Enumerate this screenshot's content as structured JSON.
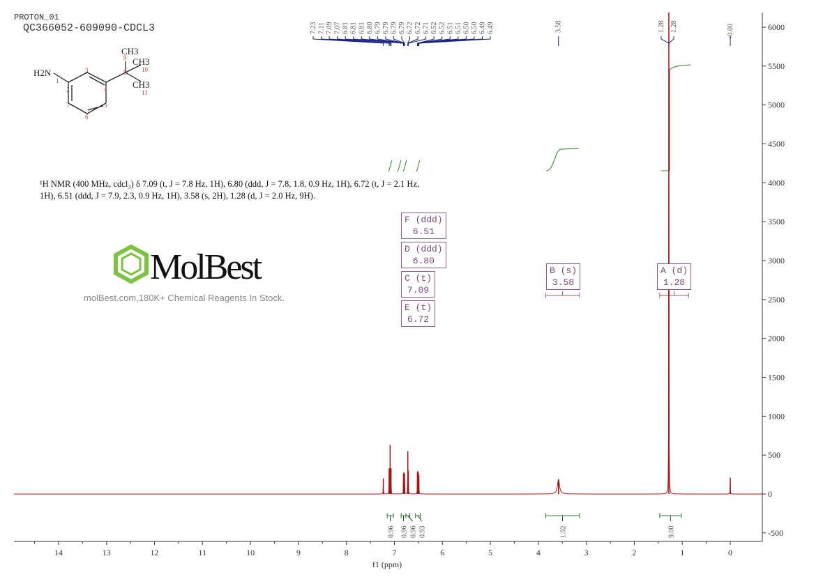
{
  "header": {
    "experiment": "PROTON_01",
    "sample": "QC366052-609090-CDCL3"
  },
  "structure": {
    "labels": {
      "nh2": "H2N",
      "ch3_top": "CH3",
      "ch3_mid": "CH3",
      "ch3_bot": "CH3"
    },
    "atom_numbers": [
      "1",
      "2",
      "3",
      "4",
      "5",
      "6",
      "7",
      "8",
      "9",
      "10",
      "11"
    ]
  },
  "description": "¹H NMR (400 MHz, cdcl₃) δ 7.09 (t, J = 7.8 Hz, 1H), 6.80 (ddd, J = 7.8, 1.8, 0.9 Hz, 1H), 6.72 (t, J = 2.1 Hz, 1H), 6.51 (ddd, J = 7.9, 2.3, 0.9 Hz, 1H), 3.58 (s, 2H), 1.28 (d, J = 2.0 Hz, 9H).",
  "watermark": {
    "logo": "MolBest",
    "text": "molBest.com,180K+ Chemical Reagents In Stock."
  },
  "multiplets": [
    {
      "label": "F (ddd)",
      "shift": "6.51"
    },
    {
      "label": "D (ddd)",
      "shift": "6.80"
    },
    {
      "label": "C (t)",
      "shift": "7.09"
    },
    {
      "label": "E (t)",
      "shift": "6.72"
    },
    {
      "label": "B (s)",
      "shift": "3.58",
      "range": [
        3.85,
        3.14
      ]
    },
    {
      "label": "A (d)",
      "shift": "1.28",
      "range": [
        1.47,
        0.87
      ]
    }
  ],
  "chart_data": {
    "type": "line",
    "xlabel": "f1 (ppm)",
    "xlim": [
      14.9,
      -0.65
    ],
    "ylim": [
      -600,
      6200
    ],
    "x_ticks": [
      14,
      13,
      12,
      11,
      10,
      9,
      8,
      7,
      6,
      5,
      4,
      3,
      2,
      1,
      0
    ],
    "y_ticks": [
      -500,
      0,
      500,
      1000,
      1500,
      2000,
      2500,
      3000,
      3500,
      4000,
      4500,
      5000,
      5500,
      6000
    ],
    "grid": false,
    "colors": {
      "spectrum": "#a01818",
      "peak_labels": "#1a237e",
      "integrals": "#2e7d32",
      "multiplets": "#8e5a8e",
      "axis": "#333333"
    },
    "peaks": [
      {
        "ppm": 7.23,
        "intensity": 200
      },
      {
        "ppm": 7.11,
        "intensity": 330
      },
      {
        "ppm": 7.09,
        "intensity": 630
      },
      {
        "ppm": 7.07,
        "intensity": 330
      },
      {
        "ppm": 6.81,
        "intensity": 260
      },
      {
        "ppm": 6.8,
        "intensity": 280
      },
      {
        "ppm": 6.79,
        "intensity": 260
      },
      {
        "ppm": 6.72,
        "intensity": 550
      },
      {
        "ppm": 6.71,
        "intensity": 300
      },
      {
        "ppm": 6.52,
        "intensity": 270
      },
      {
        "ppm": 6.51,
        "intensity": 290
      },
      {
        "ppm": 6.5,
        "intensity": 270
      },
      {
        "ppm": 6.49,
        "intensity": 240
      },
      {
        "ppm": 3.58,
        "intensity": 190,
        "broad": true
      },
      {
        "ppm": 1.28,
        "intensity": 6300
      },
      {
        "ppm": 0.0,
        "intensity": 210
      }
    ],
    "peak_labels": [
      "7.23",
      "7.11",
      "7.09",
      "7.07",
      "6.81",
      "6.81",
      "6.81",
      "6.80",
      "6.79",
      "6.79",
      "6.79",
      "6.79",
      "6.72",
      "6.72",
      "6.71",
      "6.52",
      "6.52",
      "6.51",
      "6.51",
      "6.50",
      "6.50",
      "6.49",
      "6.49"
    ],
    "peak_labels_single": [
      "3.58",
      "1.28",
      "1.28",
      "-0.00"
    ],
    "integrals": [
      {
        "from": 7.15,
        "to": 7.02,
        "value": "0.96"
      },
      {
        "from": 6.86,
        "to": 6.76,
        "value": "0.96"
      },
      {
        "from": 6.76,
        "to": 6.68,
        "value": "0.96"
      },
      {
        "from": 6.56,
        "to": 6.46,
        "value": "0.93"
      },
      {
        "from": 3.85,
        "to": 3.14,
        "value": "1.92"
      },
      {
        "from": 1.47,
        "to": 1.02,
        "value": "9.00"
      }
    ]
  }
}
